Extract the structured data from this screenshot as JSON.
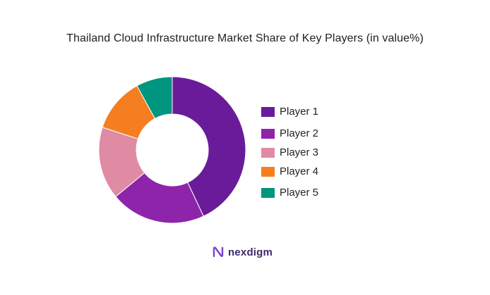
{
  "chart_data": {
    "type": "pie",
    "title": "Thailand Cloud Infrastructure Market Share of Key Players (in value%)",
    "donut": true,
    "categories": [
      "Player 1",
      "Player 2",
      "Player 3",
      "Player 4",
      "Player 5"
    ],
    "values": [
      43,
      21,
      16,
      12,
      8
    ],
    "colors": [
      "#6a1b9a",
      "#8e24aa",
      "#df8ba3",
      "#f57f20",
      "#00957e"
    ],
    "legend_position": "right"
  },
  "brand": {
    "name": "nexdigm",
    "icon": "nexdigm-logo-icon"
  }
}
